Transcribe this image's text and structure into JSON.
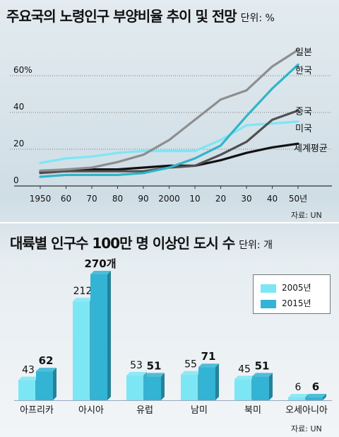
{
  "line_chart": {
    "title": "주요국의 노령인구 부양비율 추이 및 전망",
    "unit": "단위: %",
    "source": "자료: UN",
    "chart_data": {
      "type": "line",
      "title": "주요국의 노령인구 부양비율 추이 및 전망",
      "x": [
        "1950",
        "60",
        "70",
        "80",
        "90",
        "2000",
        "10",
        "20",
        "30",
        "40",
        "50년"
      ],
      "y_ticks": [
        "0",
        "20",
        "40",
        "60%"
      ],
      "ylim": [
        0,
        75
      ],
      "grid": "dotted horizontal at 20, 40, 60",
      "series": [
        {
          "name": "일본",
          "color": "#8e8e8e",
          "values": [
            8.3,
            9,
            10,
            13,
            17,
            25,
            36,
            47,
            52,
            65,
            74
          ]
        },
        {
          "name": "한국",
          "color": "#2fb5c8",
          "values": [
            5,
            6,
            6,
            6,
            7,
            10,
            15,
            22,
            38,
            53,
            66
          ]
        },
        {
          "name": "중국",
          "color": "#505050",
          "values": [
            7,
            8,
            8,
            8,
            8,
            10,
            11,
            17,
            24,
            36,
            41
          ]
        },
        {
          "name": "미국",
          "color": "#7de6f5",
          "values": [
            12.5,
            15,
            16,
            18,
            19,
            19,
            19,
            25,
            33,
            34,
            35
          ]
        },
        {
          "name": "세계평균",
          "color": "#111111",
          "values": [
            8,
            8,
            9,
            9,
            10,
            11,
            11,
            14,
            18,
            21,
            23
          ]
        }
      ]
    }
  },
  "bar_chart": {
    "title": "대륙별 인구수 100만 명 이상인 도시 수",
    "unit": "단위: 개",
    "source": "자료: UN",
    "chart_data": {
      "type": "bar",
      "title": "대륙별 인구수 100만 명 이상인 도시 수",
      "categories": [
        "아프리카",
        "아시아",
        "유럽",
        "남미",
        "북미",
        "오세아니아"
      ],
      "series": [
        {
          "name": "2005년",
          "color": "#7de6f5",
          "values": [
            43,
            212,
            53,
            55,
            45,
            6
          ]
        },
        {
          "name": "2015년",
          "color": "#33b4d4",
          "values": [
            62,
            270,
            51,
            71,
            51,
            6
          ]
        }
      ],
      "data_labels": [
        [
          "43",
          "62"
        ],
        [
          "212",
          "270개"
        ],
        [
          "53",
          "51"
        ],
        [
          "55",
          "71"
        ],
        [
          "45",
          "51"
        ],
        [
          "6",
          "6"
        ]
      ]
    }
  }
}
